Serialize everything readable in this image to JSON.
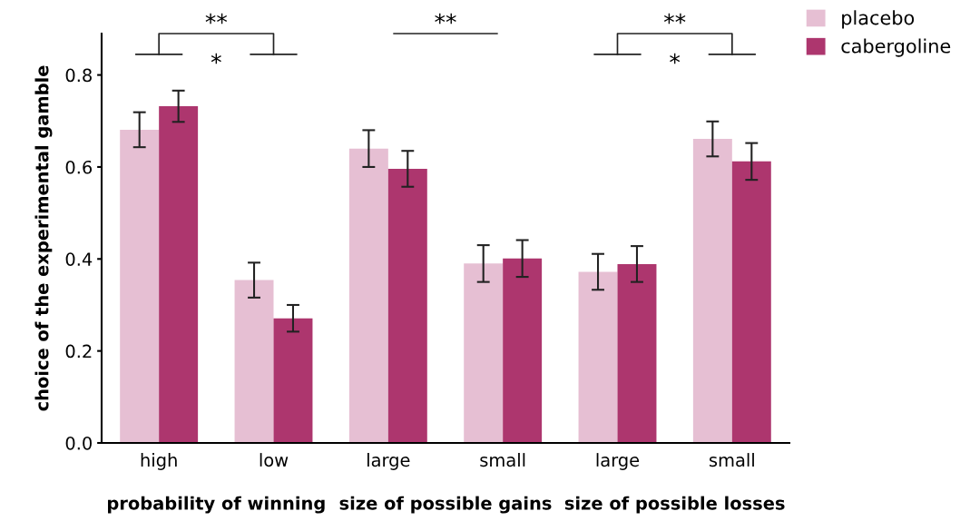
{
  "chart_data": {
    "type": "bar",
    "categories": [
      "high",
      "low",
      "large",
      "small",
      "large",
      "small"
    ],
    "ylabel": "choice of the experimental gamble",
    "ylim": [
      0,
      0.89
    ],
    "yticks": [
      {
        "value": 0,
        "label": "0.0"
      },
      0.2,
      0.4,
      0.6,
      0.8
    ],
    "legend": "top right",
    "annotations": [
      "probability of winning",
      "size of possible gains",
      "size of possible losses",
      "**",
      "*",
      "**",
      "**",
      "*"
    ],
    "series": [
      {
        "name": "placebo",
        "color": "#e6bfd3",
        "values": [
          0.681,
          0.354,
          0.64,
          0.39,
          0.372,
          0.661
        ],
        "errors": [
          0.038,
          0.038,
          0.04,
          0.04,
          0.039,
          0.038
        ]
      },
      {
        "name": "cabergoline",
        "color": "#ad366e",
        "values": [
          0.732,
          0.271,
          0.596,
          0.401,
          0.389,
          0.612
        ],
        "errors": [
          0.034,
          0.029,
          0.039,
          0.04,
          0.039,
          0.04
        ]
      }
    ]
  }
}
